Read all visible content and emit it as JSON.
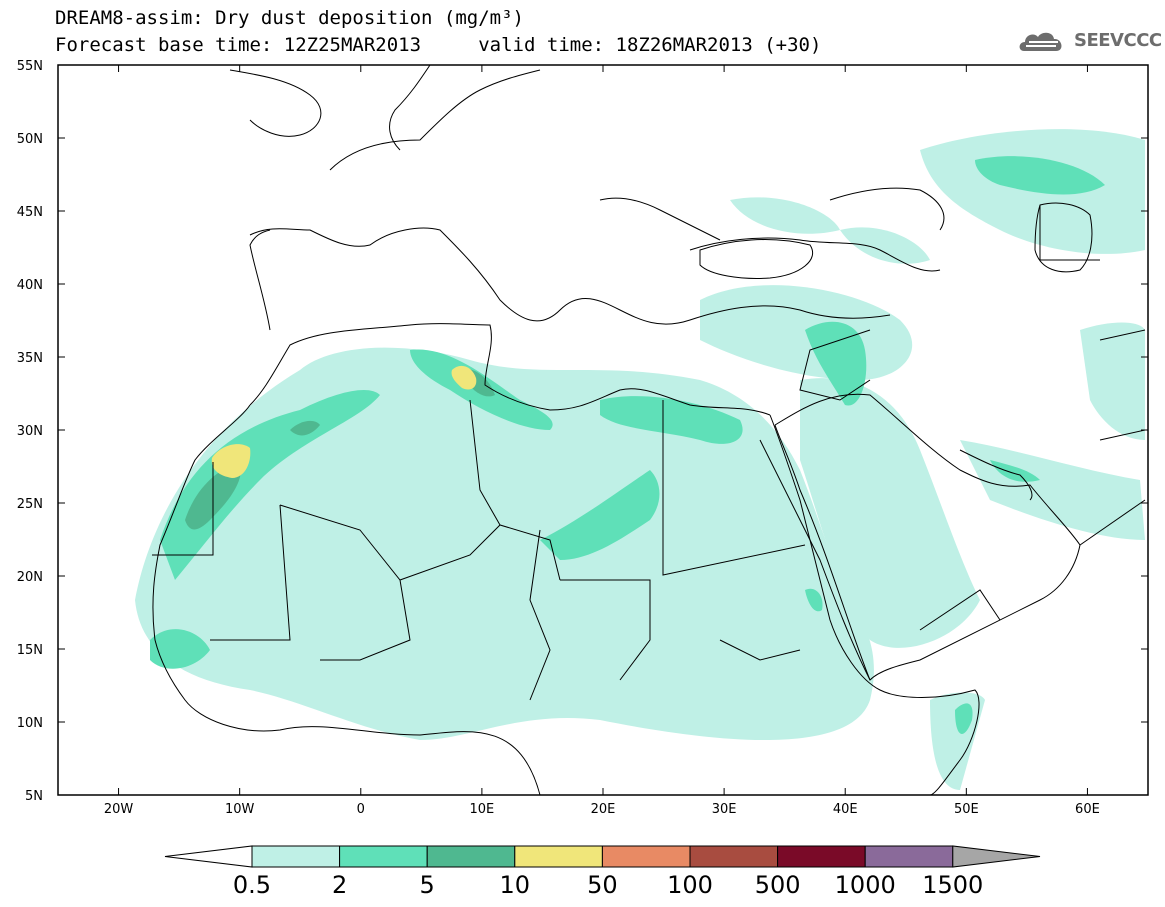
{
  "title": {
    "line1": "DREAM8-assim: Dry dust deposition (mg/m³)",
    "line2": "Forecast base time: 12Z25MAR2013     valid time: 18Z26MAR2013 (+30)"
  },
  "logo": {
    "text": "SEEVCCC",
    "icon": "cloud-icon"
  },
  "map": {
    "lon_range": [
      -25,
      65
    ],
    "lat_range": [
      5,
      55
    ],
    "lat_ticks": [
      "55N",
      "50N",
      "45N",
      "40N",
      "35N",
      "30N",
      "25N",
      "20N",
      "15N",
      "10N",
      "5N"
    ],
    "lon_ticks": [
      "20W",
      "10W",
      "0",
      "10E",
      "20E",
      "30E",
      "40E",
      "50E",
      "60E"
    ]
  },
  "colorbar": {
    "labels": [
      "0.5",
      "2",
      "5",
      "10",
      "50",
      "100",
      "500",
      "1000",
      "1500"
    ],
    "colors": [
      "#bff0e6",
      "#5fe0b8",
      "#4fb890",
      "#f0e67a",
      "#e88a64",
      "#a84c40",
      "#7a0a28",
      "#8a6a9a",
      "#a6a6a6"
    ]
  }
}
